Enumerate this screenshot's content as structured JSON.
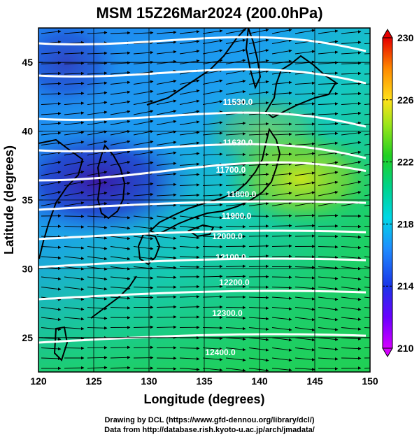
{
  "title": "MSM 15Z26Mar2024 (200.0hPa)",
  "x_axis": {
    "label": "Longitude (degrees)",
    "range": [
      120,
      150
    ],
    "ticks": [
      "120",
      "125",
      "130",
      "135",
      "140",
      "145",
      "150"
    ]
  },
  "y_axis": {
    "label": "Latitude  (degrees)",
    "range": [
      22.5,
      47.5
    ],
    "ticks": [
      "25",
      "30",
      "35",
      "40",
      "45"
    ]
  },
  "colorbar": {
    "range": [
      210,
      230
    ],
    "ticks": [
      "210",
      "214",
      "218",
      "222",
      "226",
      "230"
    ]
  },
  "contour_labels": [
    "11530.0",
    "11630.0",
    "11700.0",
    "11800.0",
    "11900.0",
    "12000.0",
    "12100.0",
    "12200.0",
    "12300.0",
    "12400.0"
  ],
  "footer": {
    "line1": "Drawing by DCL (https://www.gfd-dennou.org/library/dcl/)",
    "line2": "Data from http://database.rish.kyoto-u.ac.jp/arch/jmadata/"
  }
}
